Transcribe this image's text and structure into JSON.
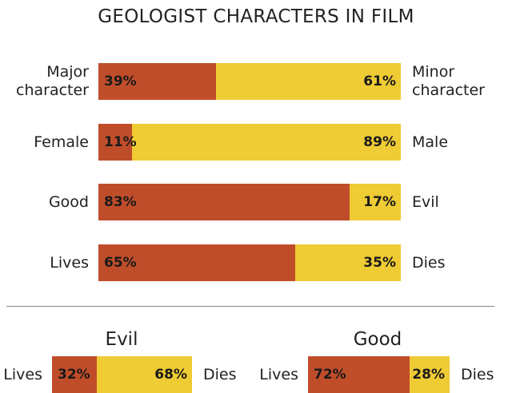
{
  "title": "GEOLOGIST CHARACTERS IN FILM",
  "colors": {
    "left": "#c04d2a",
    "right": "#efcb34"
  },
  "chart_data": [
    {
      "type": "bar",
      "title": "GEOLOGIST CHARACTERS IN FILM",
      "orientation": "horizontal-stacked",
      "rows": [
        {
          "left_label": "Major\ncharacter",
          "right_label": "Minor\ncharacter",
          "left_value": 39,
          "right_value": 61,
          "left_text": "39%",
          "right_text": "61%"
        },
        {
          "left_label": "Female",
          "right_label": "Male",
          "left_value": 11,
          "right_value": 89,
          "left_text": "11%",
          "right_text": "89%"
        },
        {
          "left_label": "Good",
          "right_label": "Evil",
          "left_value": 83,
          "right_value": 17,
          "left_text": "83%",
          "right_text": "17%"
        },
        {
          "left_label": "Lives",
          "right_label": "Dies",
          "left_value": 65,
          "right_value": 35,
          "left_text": "65%",
          "right_text": "35%"
        }
      ]
    },
    {
      "type": "bar",
      "title": "Evil",
      "orientation": "horizontal-stacked",
      "rows": [
        {
          "left_label": "Lives",
          "right_label": "Dies",
          "left_value": 32,
          "right_value": 68,
          "left_text": "32%",
          "right_text": "68%"
        }
      ]
    },
    {
      "type": "bar",
      "title": "Good",
      "orientation": "horizontal-stacked",
      "rows": [
        {
          "left_label": "Lives",
          "right_label": "Dies",
          "left_value": 72,
          "right_value": 28,
          "left_text": "72%",
          "right_text": "28%"
        }
      ]
    }
  ]
}
